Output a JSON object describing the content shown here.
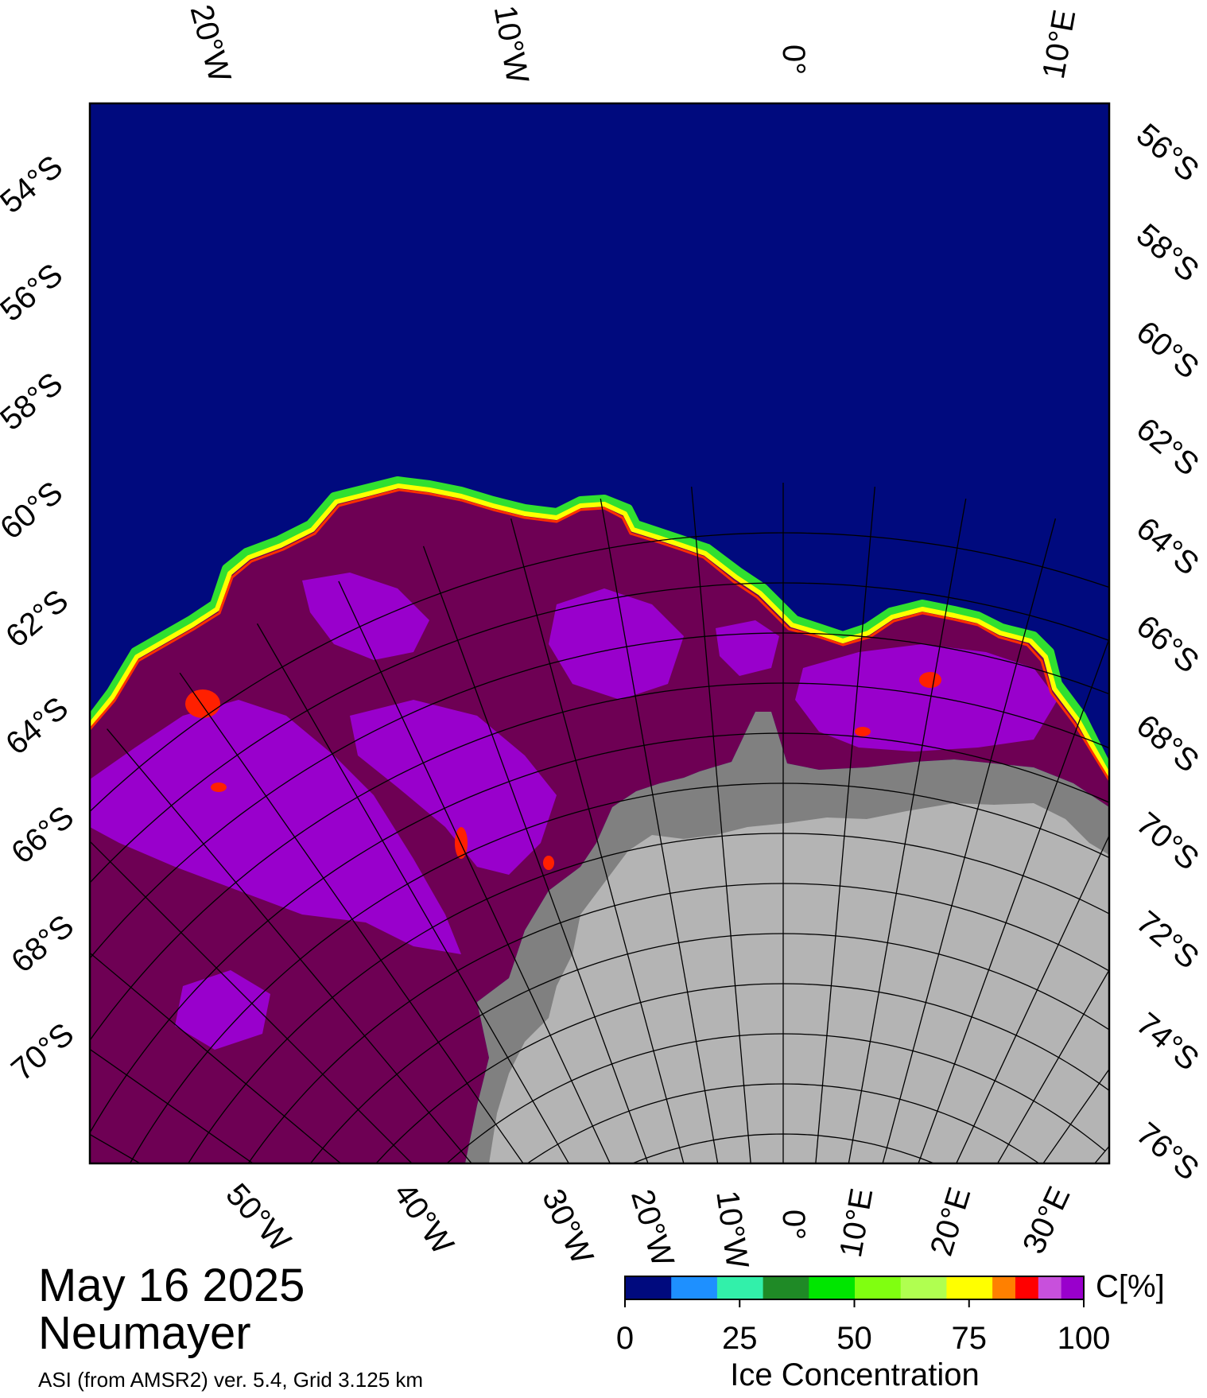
{
  "map": {
    "date": "May 16 2025",
    "station": "Neumayer",
    "product": "ASI (from AMSR2) ver. 5.4,  Grid 3.125 km",
    "top_longitude_labels": [
      "20°W",
      "10°W",
      "0°",
      "10°E"
    ],
    "bottom_longitude_labels": [
      "50°W",
      "40°W",
      "30°W",
      "20°W",
      "10°W",
      "0°",
      "10°E",
      "20°E",
      "30°E"
    ],
    "left_latitude_labels": [
      "54°S",
      "56°S",
      "58°S",
      "60°S",
      "62°S",
      "64°S",
      "66°S",
      "68°S",
      "70°S"
    ],
    "right_latitude_labels": [
      "56°S",
      "58°S",
      "60°S",
      "62°S",
      "64°S",
      "66°S",
      "68°S",
      "70°S",
      "72°S",
      "74°S",
      "76°S"
    ],
    "colors": {
      "open_water": "#000a7e",
      "ice_core": "#6e0054",
      "ice_purple": "#9900cc",
      "land_ice_shelf": "#808080",
      "land": "#b4b4b4"
    }
  },
  "colorbar": {
    "title": "Ice Concentration",
    "unit_label": "C[%]",
    "ticks": [
      "0",
      "25",
      "50",
      "75",
      "100"
    ],
    "colors": [
      "#000a7e",
      "#1e90ff",
      "#32f0aa",
      "#1f8a26",
      "#00e600",
      "#80ff10",
      "#b0ff50",
      "#ffff00",
      "#ff8000",
      "#ff0000",
      "#c850dc",
      "#9900cc"
    ]
  }
}
